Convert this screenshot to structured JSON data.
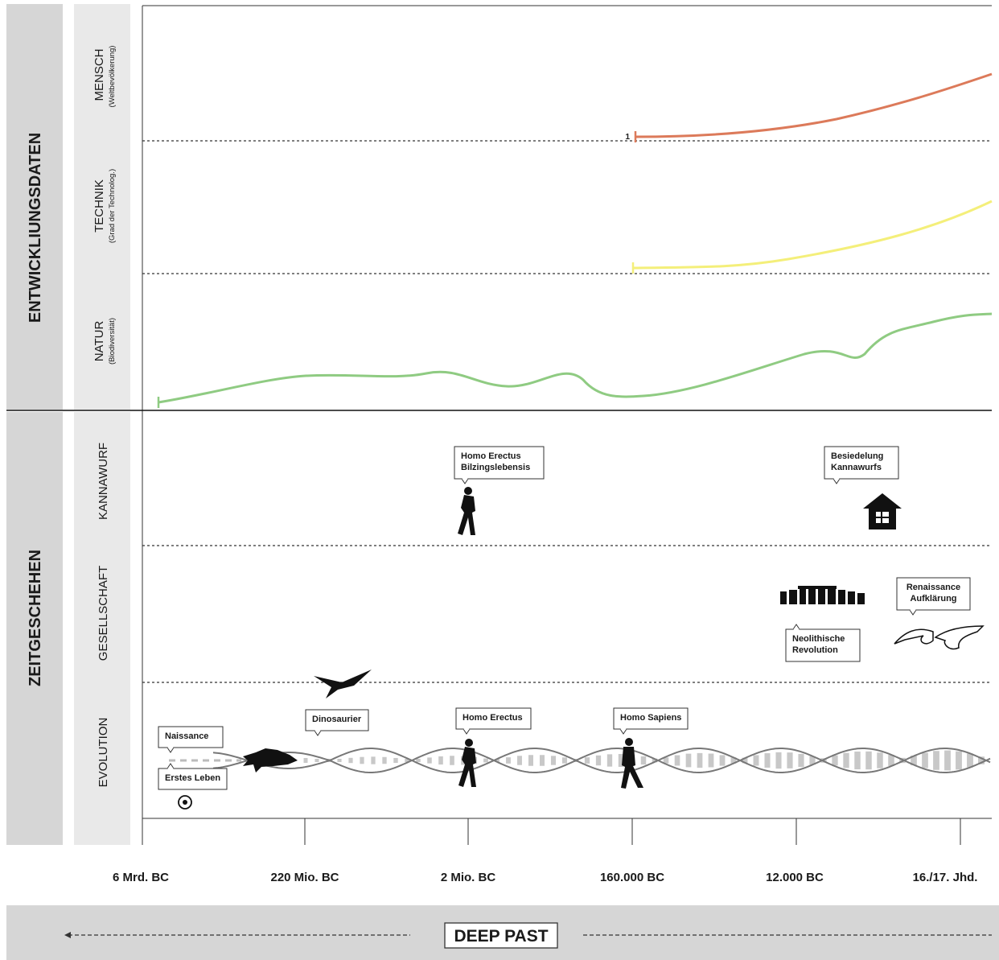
{
  "sections": [
    {
      "label": "ENTWICKLIUNGSDATEN",
      "rows": [
        {
          "label": "MENSCH",
          "sub": "(Weltbevölkerung)"
        },
        {
          "label": "TECHNIK",
          "sub": "(Grad der Technolog.)"
        },
        {
          "label": "NATUR",
          "sub": "(Biodiversität)"
        }
      ]
    },
    {
      "label": "ZEITGESCHEHEN",
      "rows": [
        {
          "label": "KANNAWURF"
        },
        {
          "label": "GESELLSCHAFT"
        },
        {
          "label": "EVOLUTION"
        }
      ]
    }
  ],
  "curve_label": "1",
  "events": [
    {
      "lines": [
        "Homo Erectus",
        "Bilzingslebensis"
      ]
    },
    {
      "lines": [
        "Besiedelung",
        "Kannawurfs"
      ]
    },
    {
      "lines": [
        "Renaissance",
        "Aufklärung"
      ]
    },
    {
      "lines": [
        "Neolithische",
        "Revolution"
      ]
    },
    {
      "lines": [
        "Dinosaurier"
      ]
    },
    {
      "lines": [
        "Homo Erectus"
      ]
    },
    {
      "lines": [
        "Homo Sapiens"
      ]
    },
    {
      "lines": [
        "Naissance"
      ]
    },
    {
      "lines": [
        "Erstes Leben"
      ]
    }
  ],
  "timeline": [
    "6 Mrd. BC",
    "220 Mio. BC",
    "2 Mio. BC",
    "160.000 BC",
    "12.000 BC",
    "16./17. Jhd."
  ],
  "footer": "DEEP PAST"
}
